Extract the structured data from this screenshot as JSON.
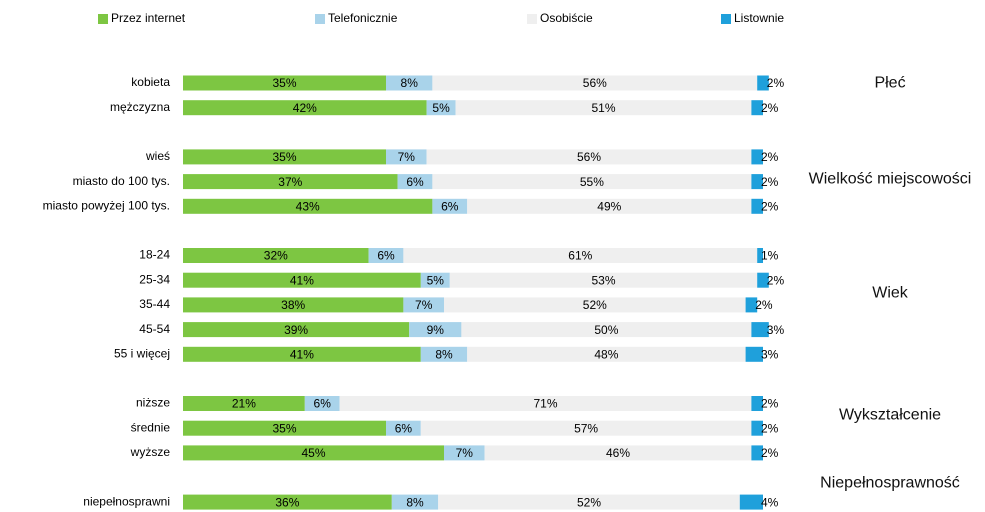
{
  "chart_data": {
    "type": "bar",
    "orientation": "horizontal",
    "stacked": true,
    "categories": [
      "kobieta",
      "mężczyzna",
      "wieś",
      "miasto do 100 tys.",
      "miasto powyżej 100 tys.",
      "18-24",
      "25-34",
      "35-44",
      "45-54",
      "55 i więcej",
      "niższe",
      "średnie",
      "wyższe",
      "niepełnosprawni"
    ],
    "series": [
      {
        "name": "Przez internet",
        "color": "#7dc642",
        "values": [
          35,
          42,
          35,
          37,
          43,
          32,
          41,
          38,
          39,
          41,
          21,
          35,
          45,
          36
        ],
        "value_labels": [
          "35%",
          "42%",
          "35%",
          "37%",
          "43%",
          "32%",
          "41%",
          "38%",
          "39%",
          "41%",
          "21%",
          "35%",
          "45%",
          "36%"
        ]
      },
      {
        "name": "Telefonicznie",
        "color": "#a9d3ea",
        "values": [
          8,
          5,
          7,
          6,
          6,
          6,
          5,
          7,
          9,
          8,
          6,
          6,
          7,
          8
        ],
        "value_labels": [
          "8%",
          "5%",
          "7%",
          "6%",
          "6%",
          "6%",
          "5%",
          "7%",
          "9%",
          "8%",
          "6%",
          "6%",
          "7%",
          "8%"
        ]
      },
      {
        "name": "Osobiście",
        "color": "#efefef",
        "values": [
          56,
          51,
          56,
          55,
          49,
          61,
          53,
          52,
          50,
          48,
          71,
          57,
          46,
          52
        ],
        "value_labels": [
          "56%",
          "51%",
          "56%",
          "55%",
          "49%",
          "61%",
          "53%",
          "52%",
          "50%",
          "48%",
          "71%",
          "57%",
          "46%",
          "52%"
        ]
      },
      {
        "name": "Listownie",
        "color": "#1fa0db",
        "values": [
          2,
          2,
          2,
          2,
          2,
          1,
          2,
          2,
          3,
          3,
          2,
          2,
          2,
          4
        ],
        "value_labels": [
          "2%",
          "2%",
          "2%",
          "2%",
          "2%",
          "1%",
          "2%",
          "2%",
          "3%",
          "3%",
          "2%",
          "2%",
          "2%",
          "4%"
        ]
      }
    ],
    "annotations": [
      "Płeć",
      "Wielkość miejscowości",
      "Wiek",
      "Wykształcenie",
      "Niepełnosprawność"
    ],
    "legend": "top"
  }
}
